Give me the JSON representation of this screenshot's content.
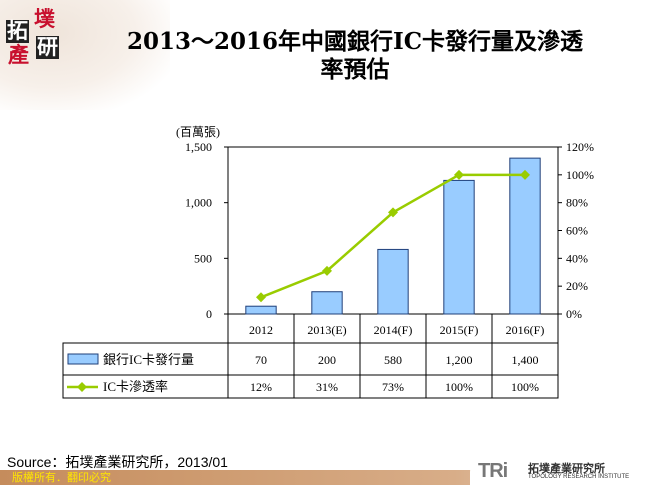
{
  "logo": {
    "chars": [
      "拓",
      "墣",
      "產",
      "研"
    ]
  },
  "title": {
    "line1": "2013～2016年中國銀行IC卡發行量及滲透",
    "line2": "率預估"
  },
  "chart_data": {
    "type": "bar+line",
    "title": "2013～2016年中國銀行IC卡發行量及滲透率預估",
    "ylabel": "(百萬張)",
    "categories": [
      "2012",
      "2013(E)",
      "2014(F)",
      "2015(F)",
      "2016(F)"
    ],
    "ylim": [
      0,
      1500
    ],
    "yticks": [
      "0",
      "500",
      "1,000",
      "1,500"
    ],
    "y2lim": [
      0,
      120
    ],
    "y2ticks": [
      "0%",
      "20%",
      "40%",
      "60%",
      "80%",
      "100%",
      "120%"
    ],
    "series": [
      {
        "name": "銀行IC卡發行量",
        "type": "bar",
        "axis": "left",
        "values": [
          70,
          200,
          580,
          1200,
          1400
        ],
        "labels": [
          "70",
          "200",
          "580",
          "1,200",
          "1,400"
        ],
        "color": "#99ccff"
      },
      {
        "name": "IC卡滲透率",
        "type": "line",
        "axis": "right",
        "values": [
          12,
          31,
          73,
          100,
          100
        ],
        "labels": [
          "12%",
          "31%",
          "73%",
          "100%",
          "100%"
        ],
        "color": "#99cc00"
      }
    ],
    "grid": false,
    "legend": "data-table"
  },
  "source": "Source：拓墣產業研究所，2013/01",
  "footer": {
    "copyright": "版權所有．翻印必究",
    "brand_mark": "TRi",
    "brand_cn": "拓墣產業研究所",
    "brand_en": "TOPOLOGY RESEARCH INSTITUTE"
  }
}
